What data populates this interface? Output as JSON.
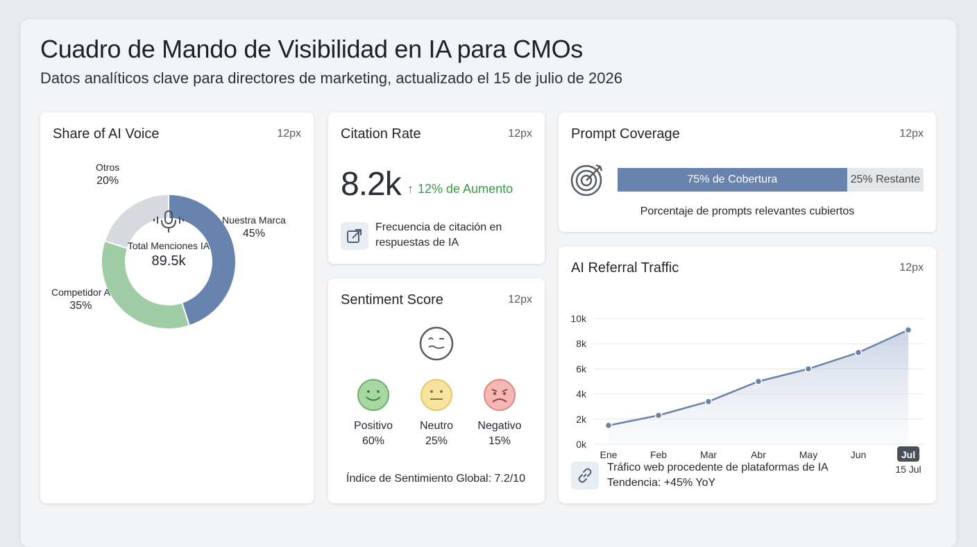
{
  "header": {
    "title": "Cuadro de Mando de Visibilidad en IA para CMOs",
    "subtitle": "Datos analíticos clave para directores de marketing, actualizado el 15 de julio de 2026"
  },
  "share_voice": {
    "title": "Share of AI Voice",
    "tag": "12px",
    "center_label": "Total Menciones IA",
    "center_value": "89.5k",
    "slices": [
      {
        "name": "Nuestra Marca",
        "pct_label": "45%",
        "value": 45,
        "color": "#6883ad"
      },
      {
        "name": "Competidor A",
        "pct_label": "35%",
        "value": 35,
        "color": "#9fcca4"
      },
      {
        "name": "Otros",
        "pct_label": "20%",
        "value": 20,
        "color": "#d6d9de"
      }
    ]
  },
  "citation": {
    "title": "Citation Rate",
    "tag": "12px",
    "value": "8.2k",
    "trend": "12% de Aumento",
    "trend_icon": "arrow-up-icon",
    "description": "Frecuencia de citación en respuestas de IA",
    "icon": "external-link-icon"
  },
  "sentiment": {
    "title": "Sentiment Score",
    "tag": "12px",
    "main_icon": "mixed-face-icon",
    "items": [
      {
        "label": "Positivo",
        "pct": "60%",
        "icon": "smile-icon",
        "color": "#a7d8a4"
      },
      {
        "label": "Neutro",
        "pct": "25%",
        "icon": "neutral-face-icon",
        "color": "#f7e3a0"
      },
      {
        "label": "Negativo",
        "pct": "15%",
        "icon": "sad-face-icon",
        "color": "#f4b8b4"
      }
    ],
    "footer": "Índice de Sentimiento Global: 7.2/10"
  },
  "coverage": {
    "title": "Prompt Coverage",
    "tag": "12px",
    "icon": "target-icon",
    "covered_fraction": 0.75,
    "covered_label": "75% de Cobertura",
    "remaining_label": "25% Restante",
    "description": "Porcentaje de prompts relevantes cubiertos"
  },
  "traffic": {
    "title": "AI Referral Traffic",
    "tag": "12px",
    "highlight_date": "15 Jul",
    "description_line1": "Tráfico web procedente de plataformas de IA",
    "description_line2": "Tendencia: +45% YoY",
    "icon": "link-icon"
  },
  "chart_data": {
    "type": "area",
    "categories": [
      "Ene",
      "Feb",
      "Mar",
      "Abr",
      "May",
      "Jun",
      "Jul"
    ],
    "values": [
      1500,
      2300,
      3400,
      5000,
      6000,
      7300,
      9100
    ],
    "y_tick_labels": [
      "0k",
      "2k",
      "4k",
      "6k",
      "8k",
      "10k"
    ],
    "ylim": [
      0,
      10000
    ],
    "grid": true,
    "highlight_category": "Jul",
    "color": "#6a82a8"
  }
}
